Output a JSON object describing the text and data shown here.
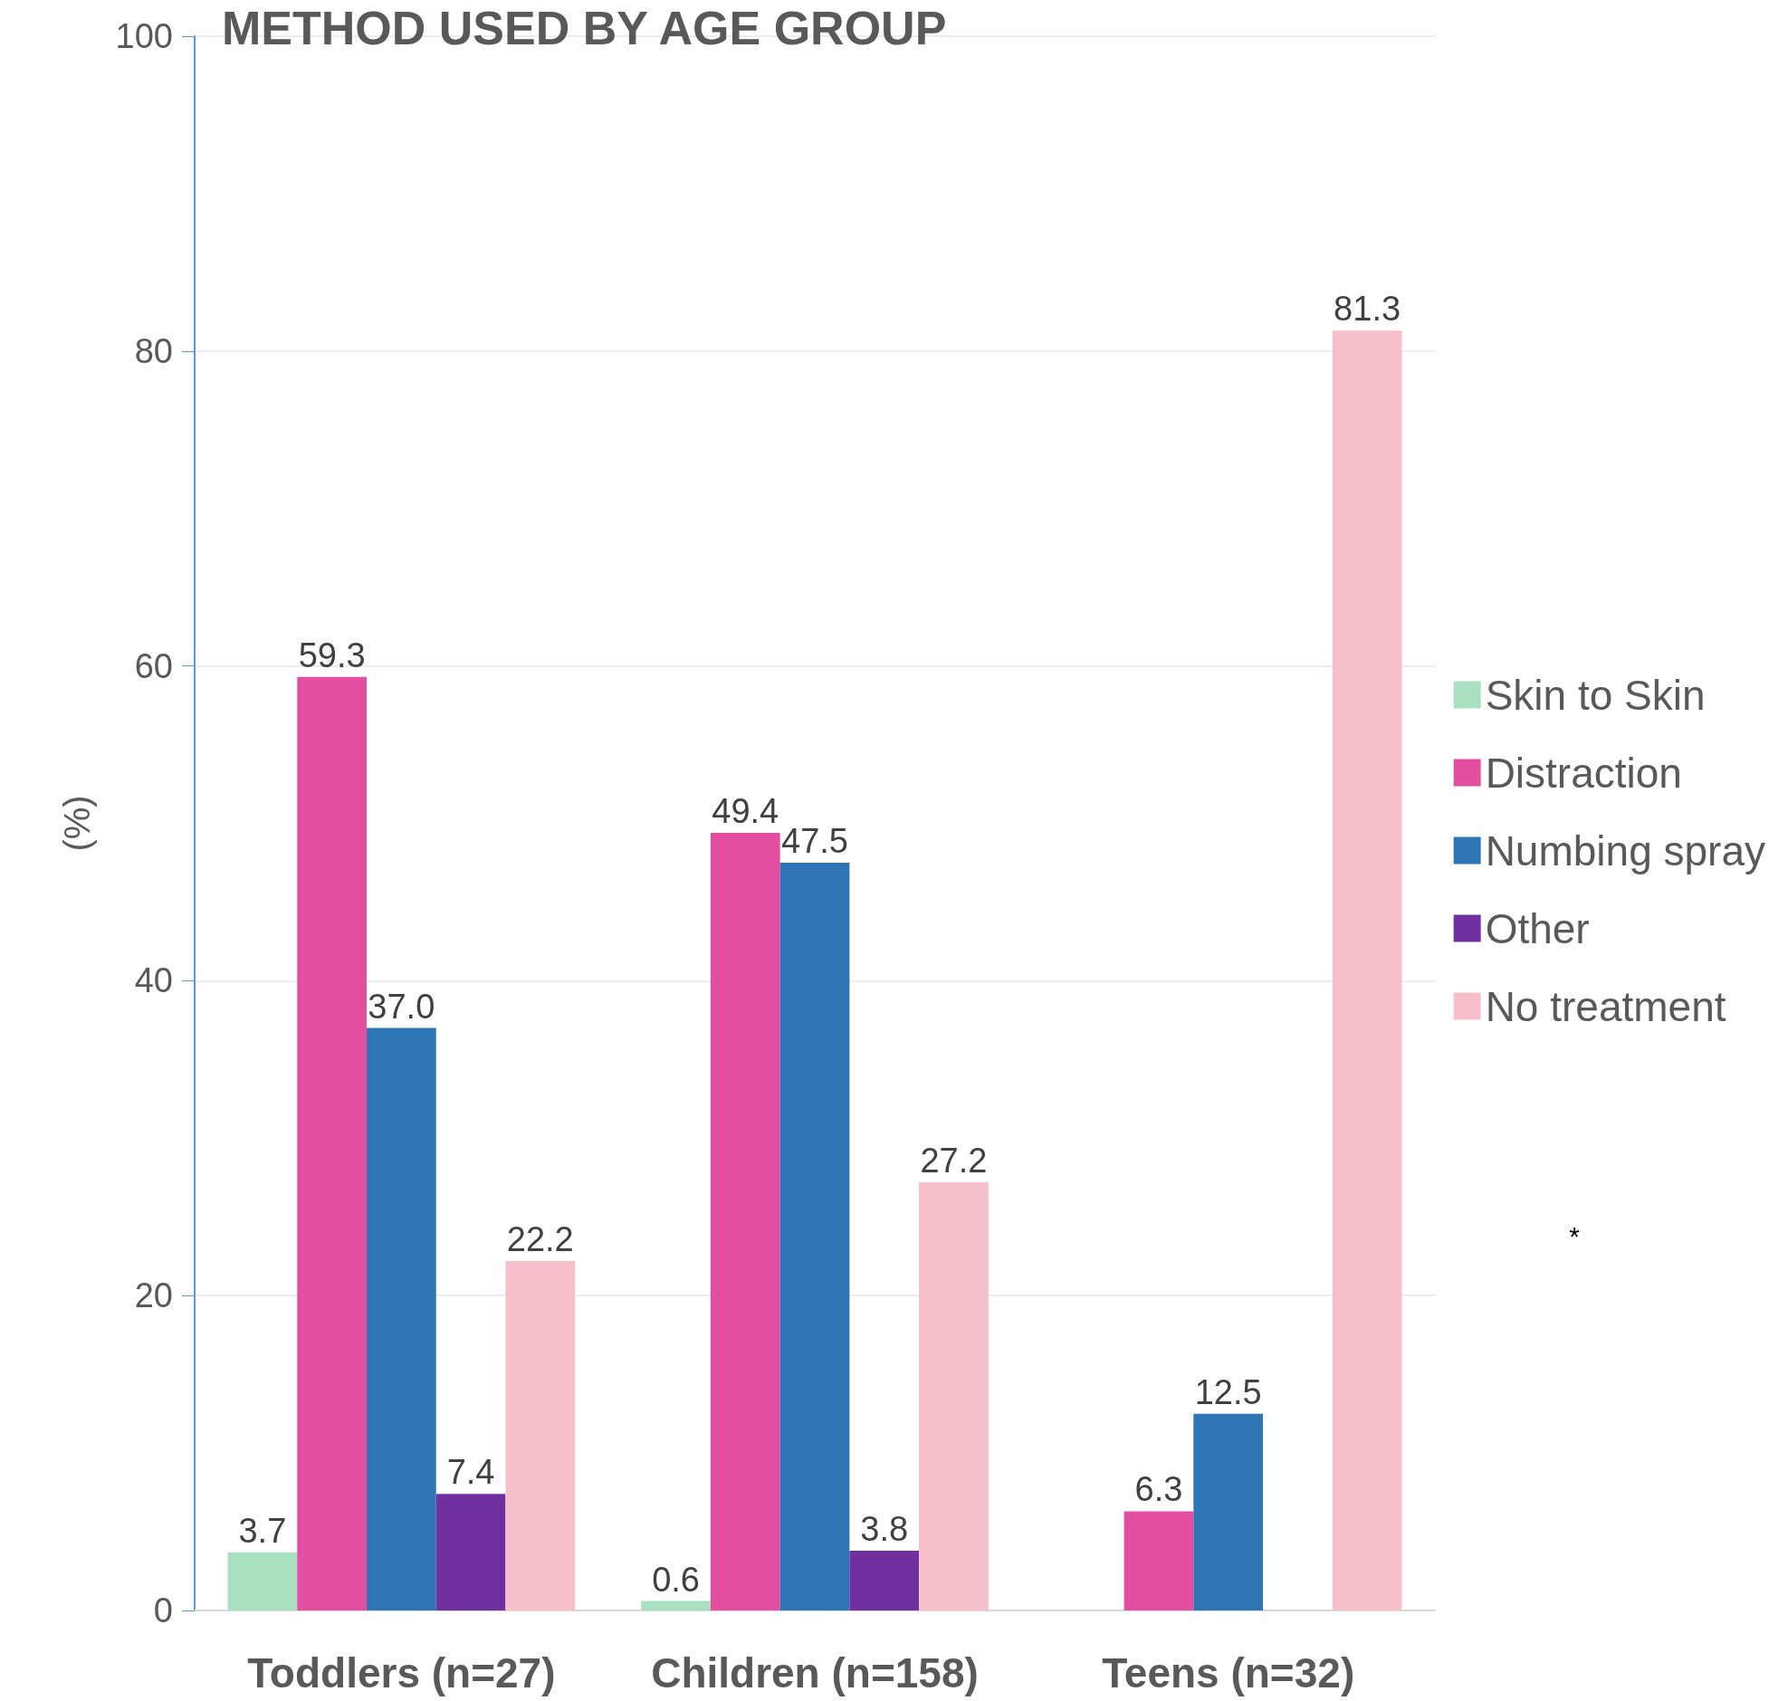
{
  "chart_data": {
    "type": "bar",
    "title": "METHOD USED BY AGE GROUP",
    "ylabel": "(%)",
    "categories": [
      "Toddlers (n=27)",
      "Children (n=158)",
      "Teens (n=32)"
    ],
    "series": [
      {
        "name": "Skin to Skin",
        "color": "#a8e0c0",
        "values": [
          3.7,
          0.6,
          null
        ],
        "value_labels": [
          "3.7",
          "0.6",
          null
        ]
      },
      {
        "name": "Distraction",
        "color": "#e34ea0",
        "values": [
          59.3,
          49.4,
          6.3
        ],
        "value_labels": [
          "59.3",
          "49.4",
          "6.3"
        ]
      },
      {
        "name": "Numbing spray",
        "color": "#2e75b6",
        "values": [
          37.0,
          47.5,
          12.5
        ],
        "value_labels": [
          "37.0",
          "47.5",
          "12.5"
        ]
      },
      {
        "name": "Other",
        "color": "#7030a0",
        "values": [
          7.4,
          3.8,
          null
        ],
        "value_labels": [
          "7.4",
          "3.8",
          null
        ]
      },
      {
        "name": "No treatment",
        "color": "#f7bfca",
        "values": [
          22.2,
          27.2,
          81.3
        ],
        "value_labels": [
          "22.2",
          "27.2",
          "81.3"
        ]
      }
    ],
    "ylim": [
      0,
      100
    ],
    "yticks": [
      0,
      20,
      40,
      60,
      80,
      100
    ],
    "grid": "y",
    "legend": "right",
    "annotations": [
      "*"
    ]
  }
}
